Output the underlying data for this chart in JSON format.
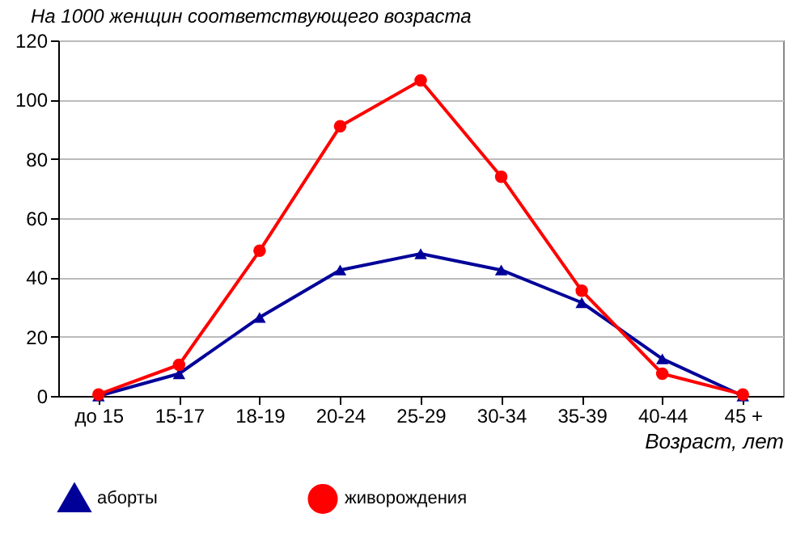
{
  "chart_data": {
    "type": "line",
    "title": "На 1000 женщин соответствующего возраста",
    "xlabel": "Возраст, лет",
    "categories": [
      "до 15",
      "15-17",
      "18-19",
      "20-24",
      "25-29",
      "30-34",
      "35-39",
      "40-44",
      "45 +"
    ],
    "series": [
      {
        "name": "аборты",
        "color": "#000099",
        "marker": "triangle",
        "values": [
          0,
          7.5,
          26.5,
          42.5,
          48,
          42.5,
          31.5,
          12.5,
          0
        ]
      },
      {
        "name": "живорождения",
        "color": "#ff0000",
        "marker": "circle",
        "values": [
          0.5,
          10.5,
          49,
          91,
          106.5,
          74,
          35.5,
          7.5,
          0.5
        ]
      }
    ],
    "ylim": [
      0,
      120
    ],
    "yticks": [
      0,
      20,
      40,
      60,
      80,
      100,
      120
    ],
    "grid": "y",
    "legend": "bottom"
  }
}
